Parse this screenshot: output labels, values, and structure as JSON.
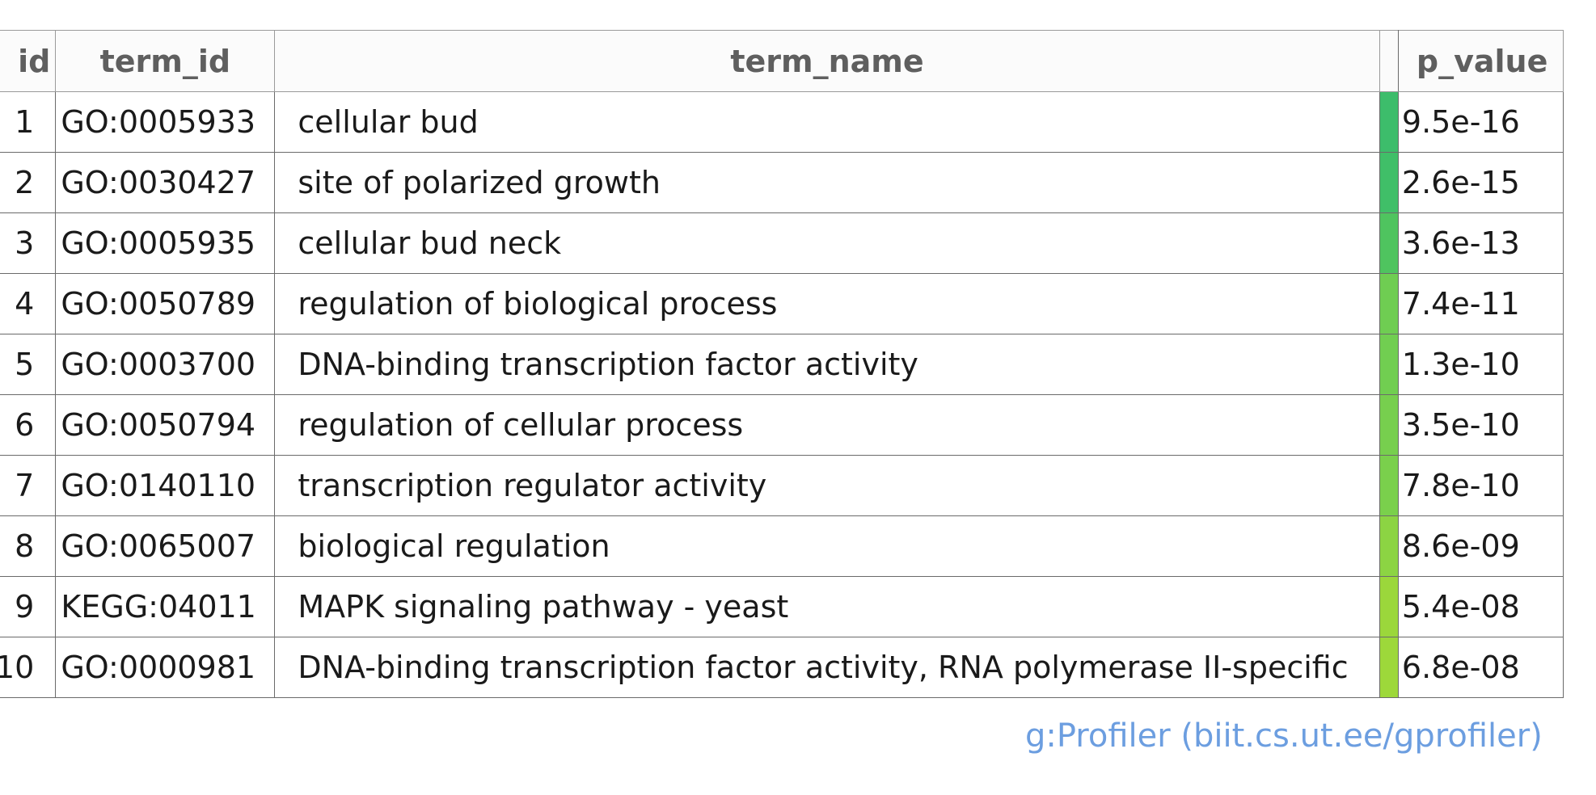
{
  "table": {
    "headers": {
      "id": "id",
      "term_id": "term_id",
      "term_name": "term_name",
      "p_value": "p_value"
    },
    "rows": [
      {
        "id": "1",
        "term_id": "GO:0005933",
        "term_name": "cellular bud",
        "p_value": "9.5e-16",
        "color": "#3dbd6b"
      },
      {
        "id": "2",
        "term_id": "GO:0030427",
        "term_name": "site of polarized growth",
        "p_value": "2.6e-15",
        "color": "#40bf68"
      },
      {
        "id": "3",
        "term_id": "GO:0005935",
        "term_name": "cellular bud neck",
        "p_value": "3.6e-13",
        "color": "#4fc45f"
      },
      {
        "id": "4",
        "term_id": "GO:0050789",
        "term_name": "regulation of biological process",
        "p_value": "7.4e-11",
        "color": "#6fcd52"
      },
      {
        "id": "5",
        "term_id": "GO:0003700",
        "term_name": "DNA-binding transcription factor activity",
        "p_value": "1.3e-10",
        "color": "#71ce51"
      },
      {
        "id": "6",
        "term_id": "GO:0050794",
        "term_name": "regulation of cellular process",
        "p_value": "3.5e-10",
        "color": "#77cf4e"
      },
      {
        "id": "7",
        "term_id": "GO:0140110",
        "term_name": "transcription regulator activity",
        "p_value": "7.8e-10",
        "color": "#7ad04c"
      },
      {
        "id": "8",
        "term_id": "GO:0065007",
        "term_name": "biological regulation",
        "p_value": "8.6e-09",
        "color": "#8cd443"
      },
      {
        "id": "9",
        "term_id": "KEGG:04011",
        "term_name": "MAPK signaling pathway - yeast",
        "p_value": "5.4e-08",
        "color": "#9bd73b"
      },
      {
        "id": "10",
        "term_id": "GO:0000981",
        "term_name": "DNA-binding transcription factor activity, RNA polymerase II-specific",
        "p_value": "6.8e-08",
        "color": "#9dd83a"
      }
    ]
  },
  "footer": {
    "credit": "g:Profiler (biit.cs.ut.ee/gprofiler)",
    "credit_color": "#6c9ee0"
  }
}
